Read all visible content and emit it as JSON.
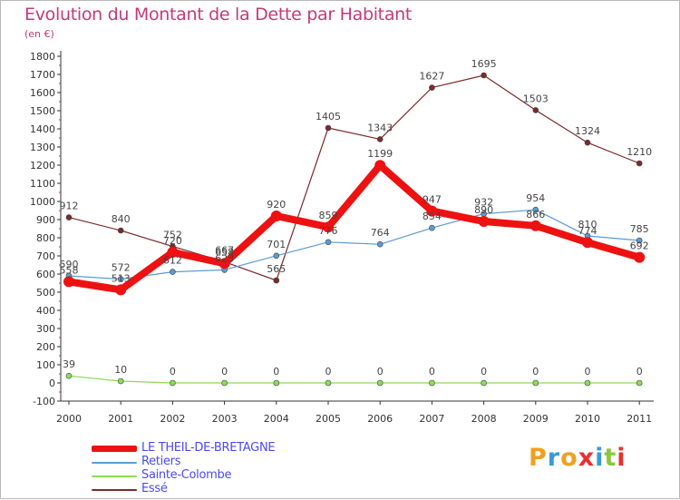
{
  "header": {
    "title": "Evolution du Montant de la Dette par Habitant",
    "subtitle": "(en €)"
  },
  "brand": {
    "logo_text": "Proxiti",
    "letters": [
      {
        "ch": "P",
        "color": "#f0a020"
      },
      {
        "ch": "r",
        "color": "#3a9ad9"
      },
      {
        "ch": "o",
        "color": "#f0a020"
      },
      {
        "ch": "x",
        "color": "#e83030"
      },
      {
        "ch": "i",
        "color": "#3a9ad9"
      },
      {
        "ch": "t",
        "color": "#8cc63f"
      },
      {
        "ch": "i",
        "color": "#e83030"
      }
    ]
  },
  "chart_data": {
    "type": "line",
    "title": "Evolution du Montant de la Dette par Habitant",
    "ylabel": "(en €)",
    "x": [
      "2000",
      "2001",
      "2002",
      "2003",
      "2004",
      "2005",
      "2006",
      "2007",
      "2008",
      "2009",
      "2010",
      "2011"
    ],
    "ylim": [
      -100,
      1800
    ],
    "yticks": [
      -100,
      0,
      100,
      200,
      300,
      400,
      500,
      600,
      700,
      800,
      900,
      1000,
      1100,
      1200,
      1300,
      1400,
      1500,
      1600,
      1700,
      1800
    ],
    "grid": false,
    "legend_position": "bottom-left",
    "series": [
      {
        "name": "LE THEIL-DE-BRETAGNE",
        "color": "#ee1111",
        "values": [
          558,
          513,
          720,
          658,
          920,
          859,
          1199,
          947,
          890,
          866,
          774,
          692
        ]
      },
      {
        "name": "Retiers",
        "color": "#5b9bd5",
        "values": [
          590,
          572,
          612,
          623,
          701,
          776,
          764,
          854,
          932,
          954,
          810,
          785
        ]
      },
      {
        "name": "Sainte-Colombe",
        "color": "#88dd55",
        "values": [
          39,
          10,
          0,
          0,
          0,
          0,
          0,
          0,
          0,
          0,
          0,
          0
        ]
      },
      {
        "name": "Essé",
        "color": "#7b2a2a",
        "values": [
          912,
          840,
          752,
          667,
          565,
          null,
          null,
          null,
          null,
          null,
          null,
          null
        ]
      },
      {
        "name": "Essé",
        "color": "#7b2a2a",
        "values": [
          null,
          null,
          null,
          null,
          565,
          1405,
          1343,
          1627,
          1695,
          1503,
          1324,
          1210
        ],
        "legend": false
      }
    ]
  }
}
